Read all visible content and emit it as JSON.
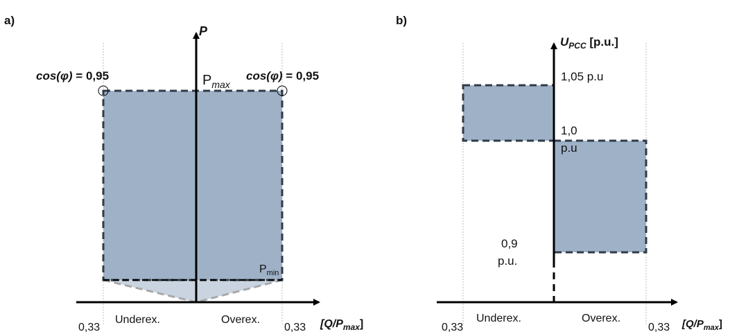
{
  "panel_a": {
    "tag": "a)",
    "y_axis_label": "P",
    "x_axis_label_main": "[Q/P",
    "x_axis_label_sub": "max",
    "x_axis_label_end": "]",
    "pmax_main": "P",
    "pmax_sub": "max",
    "pmin_main": "P",
    "pmin_sub": "min",
    "cos_left_italic": "cos(φ)",
    "cos_left_value": " = 0,95",
    "cos_right_italic": "cos(φ)",
    "cos_right_value": " = 0,95",
    "left_tick": "0,33",
    "right_tick": "0,33",
    "underexcited": "Underex.",
    "overexcited": "Overex."
  },
  "panel_b": {
    "tag": "b)",
    "y_axis_label_main": "U",
    "y_axis_label_sub": "PCC",
    "y_axis_label_unit": " [p.u.]",
    "x_axis_label_main": "[Q/P",
    "x_axis_label_sub": "max",
    "x_axis_label_end": "]",
    "label_105": "1,05 p.u",
    "label_10_line1": "1,0",
    "label_10_line2": "p.u",
    "label_09_line1": "0,9",
    "label_09_line2": "p.u.",
    "left_tick": "0,33",
    "right_tick": "0,33",
    "underexcited": "Underex.",
    "overexcited": "Overex."
  },
  "colors": {
    "region_fill": "#9fb1c7",
    "region_light_fill": "#c9d4e0",
    "dashed_border": "#2f3a47",
    "grey_dash": "#a8a8a8",
    "axis": "#000000"
  }
}
